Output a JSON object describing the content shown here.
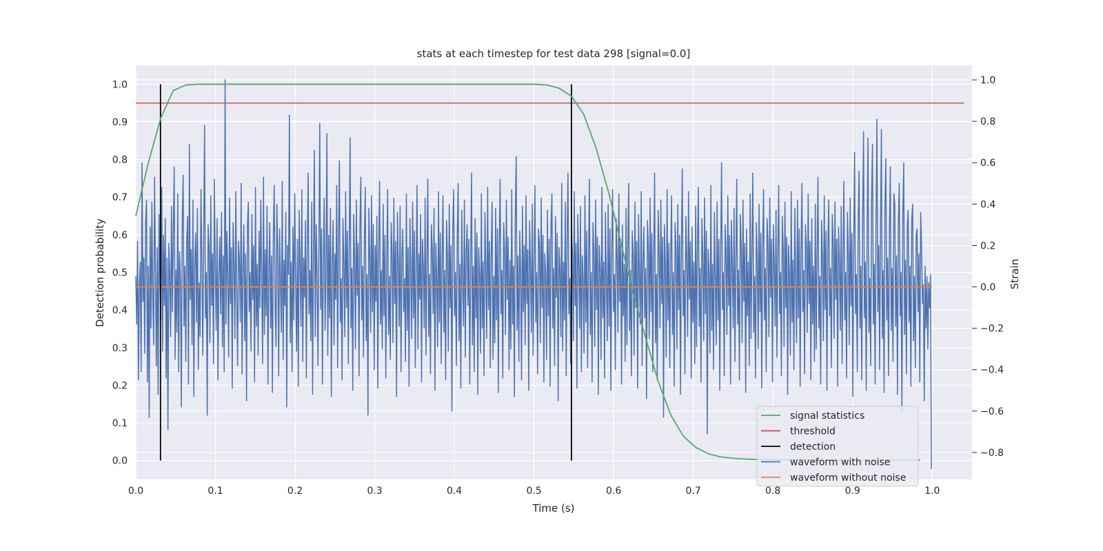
{
  "chart_data": {
    "type": "line",
    "title": "stats at each timestep for test data 298 [signal=0.0]",
    "xlabel": "Time (s)",
    "ylabel_left": "Detection probability",
    "ylabel_right": "Strain",
    "xlim": [
      0.0,
      1.05
    ],
    "ylim_left": [
      -0.05,
      1.05
    ],
    "ylim_right": [
      -0.93,
      1.07
    ],
    "x_ticks": [
      "0.0",
      "0.1",
      "0.2",
      "0.3",
      "0.4",
      "0.5",
      "0.6",
      "0.7",
      "0.8",
      "0.9",
      "1.0"
    ],
    "y_left_ticks": [
      "0.0",
      "0.1",
      "0.2",
      "0.3",
      "0.4",
      "0.5",
      "0.6",
      "0.7",
      "0.8",
      "0.9",
      "1.0"
    ],
    "y_right_ticks": [
      "−0.8",
      "−0.6",
      "−0.4",
      "−0.2",
      "0.0",
      "0.2",
      "0.4",
      "0.6",
      "0.8",
      "1.0"
    ],
    "grid": true,
    "legend_position": "lower-right",
    "colors": {
      "background": "#eaeaf2",
      "grid": "#ffffff",
      "signal": "#55a868",
      "threshold": "#c44e52",
      "detection": "#000000",
      "noisy": "#4c72b0",
      "clean": "#dd8452"
    },
    "series": {
      "signal_statistics": {
        "name": "signal statistics",
        "x": [
          0.0,
          0.0156,
          0.0313,
          0.0469,
          0.0625,
          0.078,
          0.094,
          0.125,
          0.2,
          0.3,
          0.4,
          0.5,
          0.516,
          0.531,
          0.547,
          0.5625,
          0.578,
          0.594,
          0.609,
          0.625,
          0.641,
          0.656,
          0.672,
          0.6875,
          0.703,
          0.719,
          0.734,
          0.75,
          0.766,
          0.781,
          0.8,
          0.85,
          0.9,
          0.95,
          0.985
        ],
        "y": [
          0.65,
          0.79,
          0.91,
          0.983,
          0.998,
          1.0,
          1.0,
          1.0,
          1.0,
          1.0,
          1.0,
          1.0,
          0.998,
          0.99,
          0.968,
          0.92,
          0.83,
          0.71,
          0.58,
          0.44,
          0.32,
          0.21,
          0.12,
          0.065,
          0.035,
          0.018,
          0.01,
          0.006,
          0.004,
          0.003,
          0.002,
          0.001,
          0.001,
          0.001,
          0.001
        ]
      },
      "threshold": {
        "name": "threshold",
        "value": 0.95,
        "x_range": [
          0.0,
          1.04
        ]
      },
      "detection": {
        "name": "detection",
        "x": [
          0.031,
          0.547
        ],
        "y_range": [
          0.0,
          1.0
        ]
      },
      "waveform_with_noise": {
        "name": "waveform with noise",
        "x_range": [
          0.0,
          0.999
        ],
        "y": [
          0.05,
          -0.18,
          0.22,
          -0.45,
          0.01,
          0.12,
          -0.41,
          0.6,
          -0.07,
          0.14,
          -0.32,
          0.31,
          0.42,
          -0.46,
          0.1,
          -0.63,
          0.29,
          -0.2,
          0.41,
          -0.05,
          -0.28,
          0.53,
          0.07,
          -0.38,
          0.19,
          -0.52,
          0.35,
          0.02,
          -0.16,
          0.48,
          -0.31,
          0.25,
          -0.09,
          0.33,
          -0.44,
          0.14,
          -0.69,
          0.21,
          0.05,
          -0.24,
          0.39,
          -0.12,
          0.27,
          0.58,
          -0.35,
          0.08,
          -0.22,
          0.45,
          -0.41,
          0.17,
          0.03,
          -0.58,
          0.31,
          0.54,
          -0.19,
          0.1,
          -0.36,
          0.22,
          0.34,
          -0.47,
          0.69,
          -0.06,
          0.18,
          -0.28,
          0.42,
          -0.53,
          0.12,
          0.26,
          -0.17,
          0.38,
          -0.4,
          0.02,
          -0.24,
          0.47,
          0.13,
          -0.33,
          0.21,
          0.78,
          -0.15,
          0.07,
          -0.62,
          0.3,
          0.19,
          -0.27,
          0.44,
          -0.09,
          0.16,
          -0.37,
          0.52,
          0.1,
          -0.21,
          0.33,
          -0.45,
          0.06,
          0.24,
          -0.13,
          0.36,
          -0.29,
          0.15,
          -0.41,
          1.0,
          -0.18,
          0.27,
          0.05,
          -0.34,
          0.43,
          -0.08,
          0.19,
          -0.49,
          0.31,
          0.12,
          -0.25,
          0.46,
          -0.03,
          -0.38,
          0.22,
          0.13,
          -0.17,
          0.5,
          -0.42,
          0.09,
          0.3,
          -0.26,
          0.16,
          -0.55,
          0.29,
          0.41,
          -0.12,
          0.07,
          -0.31,
          0.35,
          -0.06,
          0.2,
          -0.46,
          0.48,
          -0.19,
          0.11,
          -0.33,
          0.27,
          -0.1,
          0.42,
          0.04,
          -0.37,
          0.53,
          -0.23,
          0.18,
          -0.14,
          0.39,
          -0.47,
          0.08,
          0.31,
          -0.2,
          0.15,
          -0.51,
          0.24,
          0.49,
          -0.07,
          -0.29,
          0.4,
          0.16,
          -0.43,
          0.28,
          0.03,
          -0.22,
          0.51,
          -0.35,
          0.13,
          -0.09,
          0.36,
          -0.58,
          0.2,
          0.06,
          0.83,
          -0.27,
          0.12,
          -0.41,
          0.29,
          -0.16,
          0.45,
          0.02,
          -0.31,
          0.23,
          -0.48,
          0.37,
          0.1,
          -0.19,
          0.47,
          -0.36,
          0.14,
          -0.05,
          0.32,
          -0.44,
          0.2,
          0.55,
          -0.13,
          0.08,
          -0.26,
          0.41,
          -0.52,
          0.17,
          0.66,
          -0.24,
          0.3,
          0.05,
          -0.38,
          0.19,
          0.79,
          -0.11,
          0.28,
          -0.47,
          0.13,
          0.43,
          -0.21,
          0.07,
          0.74,
          -0.33,
          0.25,
          -0.15,
          0.38,
          -0.53,
          0.11,
          0.32,
          -0.28,
          0.16,
          -0.06,
          0.49,
          -0.39,
          0.22,
          0.61,
          -0.17,
          0.04,
          -0.45,
          0.33,
          0.12,
          -0.24,
          0.46,
          -0.1,
          0.27,
          -0.37,
          0.18,
          0.72,
          -0.2,
          0.09,
          -0.5,
          0.35,
          0.14,
          -0.3,
          0.42,
          -0.04,
          0.21,
          -0.43,
          0.29,
          0.53,
          -0.16,
          0.1,
          -0.34,
          0.24,
          0.48,
          -0.26,
          0.06,
          -0.62,
          0.38,
          0.15,
          -0.22,
          0.44,
          -0.12,
          0.3,
          -0.4,
          0.2,
          -0.07,
          0.34,
          -0.49,
          0.16,
          0.51,
          -0.18,
          0.08,
          -0.3,
          0.4,
          -0.14,
          0.25,
          -0.44,
          0.12,
          0.47,
          -0.23,
          0.05,
          -0.35,
          0.31,
          0.17,
          -0.27,
          0.43,
          -0.08,
          0.22,
          -0.53,
          0.36,
          0.1,
          -0.19,
          0.39,
          -0.41,
          0.14,
          0.28,
          -0.12,
          0.04,
          -0.36,
          0.45,
          -0.21,
          0.19,
          -0.48,
          0.33,
          0.07,
          -0.25,
          0.41,
          -0.15,
          0.27,
          -0.39,
          0.11,
          0.49,
          -0.3,
          0.16,
          -0.06,
          0.35,
          -0.46,
          0.23,
          0.09,
          -0.2,
          0.43,
          -0.33,
          0.13,
          0.52,
          -0.24,
          0.06,
          -0.42,
          0.3,
          0.18,
          -0.13,
          0.38,
          -0.5,
          0.21,
          0.04,
          -0.29,
          0.46,
          -0.17,
          0.26,
          -0.37,
          0.12,
          0.44,
          -0.22,
          0.08,
          -0.45,
          0.32,
          0.15,
          -0.31,
          0.4,
          -0.1,
          0.2,
          -0.6,
          0.29,
          0.47,
          -0.14,
          0.07,
          -0.38,
          0.25,
          0.5,
          -0.26,
          0.11,
          -0.49,
          0.37,
          0.02,
          -0.19,
          0.42,
          -0.34,
          0.16,
          0.3,
          -0.09,
          0.23,
          -0.47,
          0.14,
          0.55,
          -0.28,
          0.1,
          -0.41,
          0.33,
          -0.15,
          0.26,
          -0.52,
          0.19,
          0.06,
          -0.32,
          0.45,
          -0.2,
          0.12,
          -0.43,
          0.36,
          0.09,
          -0.25,
          0.48,
          -0.11,
          0.22,
          -0.39,
          0.15,
          0.41,
          -0.35,
          0.05,
          -0.27,
          0.38,
          -0.16,
          0.28,
          -0.51,
          0.2,
          0.52,
          -0.13,
          0.08,
          -0.44,
          0.31,
          0.17,
          -0.23,
          0.42,
          -0.06,
          0.24,
          -0.4,
          0.13,
          -0.3,
          0.47,
          -0.18,
          0.1,
          -0.53,
          0.34,
          0.63,
          -0.21,
          0.15,
          -0.36,
          0.27,
          0.05,
          -0.45,
          0.39,
          -0.12,
          0.2,
          -0.28,
          0.44,
          -0.08,
          0.18,
          -0.5,
          0.32,
          0.11,
          -0.22,
          0.4,
          -0.33,
          0.14,
          0.49,
          -0.17,
          0.07,
          -0.42,
          0.28,
          0.21,
          -0.27,
          0.43,
          -0.1,
          0.25,
          -0.46,
          0.16,
          0.06,
          -0.35,
          0.37,
          -0.14,
          0.23,
          -0.48,
          0.3,
          0.45,
          -0.2,
          0.09,
          -0.38,
          0.34,
          -0.05,
          0.26,
          -0.55,
          0.19,
          0.08,
          -0.24,
          0.5,
          -0.31,
          0.12,
          -0.16,
          0.41,
          -0.43,
          0.22,
          0.55,
          -0.13,
          0.04,
          -0.37,
          0.29,
          0.16,
          -0.26,
          0.46,
          -0.09,
          0.21,
          -0.49,
          0.35,
          0.1,
          -0.2,
          0.39,
          -0.41,
          0.15,
          0.04,
          -0.32,
          0.44,
          -0.17,
          0.27,
          -0.39,
          0.13,
          0.52,
          -0.23,
          0.07,
          -0.46,
          0.31,
          0.18,
          -0.29,
          0.42,
          -0.11,
          0.24,
          -0.52,
          0.2,
          0.09,
          -0.35,
          0.48,
          -0.15,
          0.12,
          -0.44,
          0.36,
          0.03,
          -0.26,
          0.4,
          -0.19,
          0.28,
          -0.5,
          0.17,
          0.47,
          -0.12,
          0.06,
          -0.4,
          0.33,
          0.14,
          -0.22,
          0.45,
          -0.07,
          0.23,
          -0.47,
          0.3,
          -0.14,
          0.11,
          -0.36,
          0.38,
          -0.28,
          0.19,
          0.5,
          -0.21,
          0.08,
          -0.43,
          0.27,
          0.16,
          -0.33,
          0.41,
          -0.1,
          0.22,
          -0.49,
          0.35,
          0.05,
          -0.18,
          0.46,
          -0.38,
          0.13,
          0.29,
          -0.15,
          0.09,
          -0.54,
          0.32,
          0.2,
          -0.25,
          0.43,
          -0.12,
          0.26,
          -0.41,
          0.14,
          0.55,
          -0.27,
          0.06,
          -0.45,
          0.37,
          0.17,
          -0.2,
          0.42,
          -0.08,
          0.24,
          -0.63,
          0.3,
          0.1,
          -0.34,
          0.47,
          -0.16,
          0.21,
          -0.39,
          0.13,
          0.44,
          -0.23,
          0.07,
          -0.48,
          0.31,
          0.18,
          -0.3,
          0.4,
          -0.11,
          0.25,
          -0.52,
          0.19,
          0.57,
          -0.14,
          0.08,
          -0.42,
          0.34,
          0.15,
          -0.24,
          0.46,
          -0.06,
          0.22,
          -0.44,
          0.29,
          -0.17,
          0.12,
          -0.37,
          0.39,
          -0.29,
          0.2,
          0.48,
          -0.19,
          0.09,
          -0.46,
          0.33,
          0.14,
          -0.26,
          0.43,
          -0.13,
          0.27,
          -0.71,
          0.18,
          0.06,
          -0.32,
          0.49,
          -0.21,
          0.11,
          -0.4,
          0.36,
          0.04,
          -0.28,
          0.41,
          -0.16,
          0.23,
          -0.5,
          0.15,
          0.6,
          -0.11,
          0.07,
          -0.43,
          0.3,
          0.17,
          -0.23,
          0.44,
          -0.09,
          0.25,
          -0.47,
          0.32,
          0.1,
          -0.2,
          0.38,
          -0.36,
          0.13,
          0.52,
          -0.18,
          0.08,
          -0.45,
          0.35,
          0.19,
          -0.27,
          0.42,
          -0.07,
          0.21,
          -0.51,
          0.28,
          -0.14,
          0.12,
          -0.38,
          0.45,
          -0.25,
          0.16,
          0.55,
          -0.22,
          0.05,
          -0.44,
          0.31,
          0.14,
          -0.3,
          0.4,
          -0.12,
          0.26,
          -0.49,
          0.19,
          0.47,
          -0.16,
          0.09,
          -0.41,
          0.33,
          0.2,
          -0.24,
          0.43,
          -0.05,
          0.23,
          -0.46,
          0.3,
          0.11,
          -0.19,
          0.37,
          -0.34,
          0.15,
          0.49,
          -0.13,
          0.07,
          -0.43,
          0.34,
          0.18,
          -0.29,
          0.41,
          -0.1,
          0.24,
          -0.52,
          0.2,
          0.06,
          -0.33,
          0.46,
          -0.17,
          0.13,
          -0.4,
          0.38,
          0.03,
          -0.27,
          0.42,
          -0.15,
          0.28,
          -0.48,
          0.16,
          0.5,
          -0.12,
          0.08,
          -0.42,
          0.3,
          0.19,
          -0.22,
          0.45,
          -0.08,
          0.22,
          -0.45,
          0.33,
          -0.18,
          0.1,
          -0.36,
          0.4,
          -0.3,
          0.17,
          0.53,
          -0.2,
          0.05,
          -0.47,
          0.32,
          0.15,
          -0.26,
          0.44,
          -0.11,
          0.27,
          -0.5,
          0.18,
          0.42,
          -0.14,
          0.09,
          -0.39,
          0.35,
          0.21,
          -0.25,
          0.41,
          -0.06,
          0.23,
          -0.48,
          0.29,
          0.12,
          -0.21,
          0.39,
          -0.37,
          0.14,
          0.51,
          -0.16,
          0.07,
          -0.44,
          0.36,
          0.17,
          -0.28,
          0.43,
          -0.09,
          0.26,
          -0.53,
          0.2,
          0.65,
          -0.13,
          0.06,
          -0.41,
          0.31,
          0.56,
          -0.2,
          0.1,
          -0.45,
          0.34,
          0.75,
          -0.15,
          0.12,
          -0.5,
          0.28,
          0.72,
          -0.22,
          0.04,
          -0.38,
          0.42,
          0.69,
          -0.18,
          0.11,
          -0.47,
          0.33,
          0.81,
          -0.12,
          0.2,
          -0.4,
          0.3,
          0.76,
          -0.25,
          0.08,
          -0.51,
          0.39,
          0.62,
          -0.16,
          0.14,
          -0.43,
          0.27,
          0.58,
          -0.21,
          0.09,
          -0.36,
          0.45,
          0.4,
          -0.19,
          0.15,
          -0.52,
          0.31,
          0.5,
          -0.14,
          0.07,
          -0.6,
          0.35,
          0.6,
          -0.23,
          0.13,
          -0.42,
          0.29,
          0.37,
          -0.17,
          0.1,
          -0.48,
          0.33,
          0.4,
          -0.26,
          0.05,
          -0.39,
          0.25,
          0.28,
          -0.12,
          0.16,
          -0.46,
          0.36,
          0.2,
          -0.08,
          0.01,
          -0.55,
          0.1,
          -0.2,
          0.05,
          -0.3,
          0.02,
          -0.1,
          0.06,
          -0.88
        ]
      },
      "waveform_without_noise": {
        "name": "waveform without noise",
        "value": 0.0,
        "x_range": [
          0.0,
          1.0
        ]
      }
    },
    "legend": [
      "signal statistics",
      "threshold",
      "detection",
      "waveform with noise",
      "waveform without noise"
    ]
  }
}
